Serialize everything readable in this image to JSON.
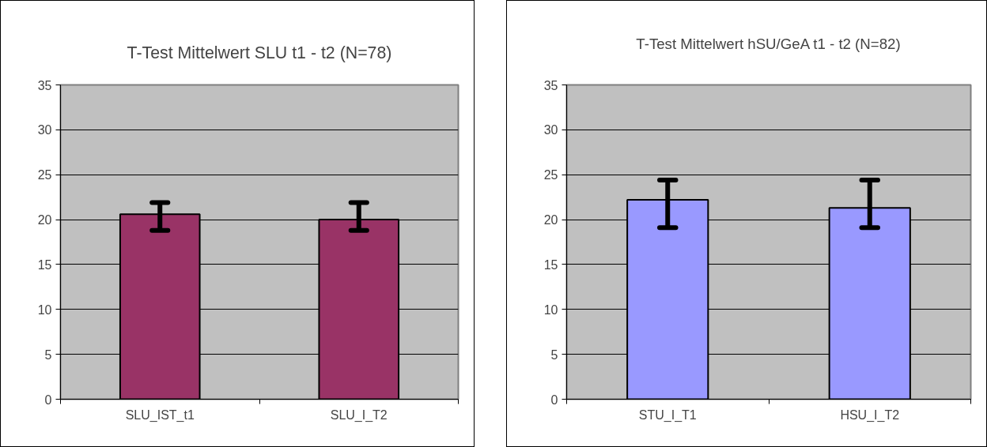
{
  "chart_data": [
    {
      "type": "bar",
      "title": "T-Test Mittelwert SLU t1 - t2 (N=78)",
      "categories": [
        "SLU_IST_t1",
        "SLU_I_T2"
      ],
      "values": [
        20.6,
        20.0
      ],
      "errors": [
        [
          18.8,
          21.9
        ],
        [
          18.8,
          21.9
        ]
      ],
      "color": "#993366",
      "ylim": [
        0,
        35
      ],
      "yticks": [
        0,
        5,
        10,
        15,
        20,
        25,
        30,
        35
      ],
      "grid": "y",
      "legend": false
    },
    {
      "type": "bar",
      "title": "T-Test Mittelwert hSU/GeA t1 - t2 (N=82)",
      "categories": [
        "STU_I_T1",
        "HSU_I_T2"
      ],
      "values": [
        22.2,
        21.3
      ],
      "errors": [
        [
          19.1,
          24.4
        ],
        [
          19.1,
          24.4
        ]
      ],
      "color": "#9999ff",
      "ylim": [
        0,
        35
      ],
      "yticks": [
        0,
        5,
        10,
        15,
        20,
        25,
        30,
        35
      ],
      "grid": "y",
      "legend": false
    }
  ]
}
